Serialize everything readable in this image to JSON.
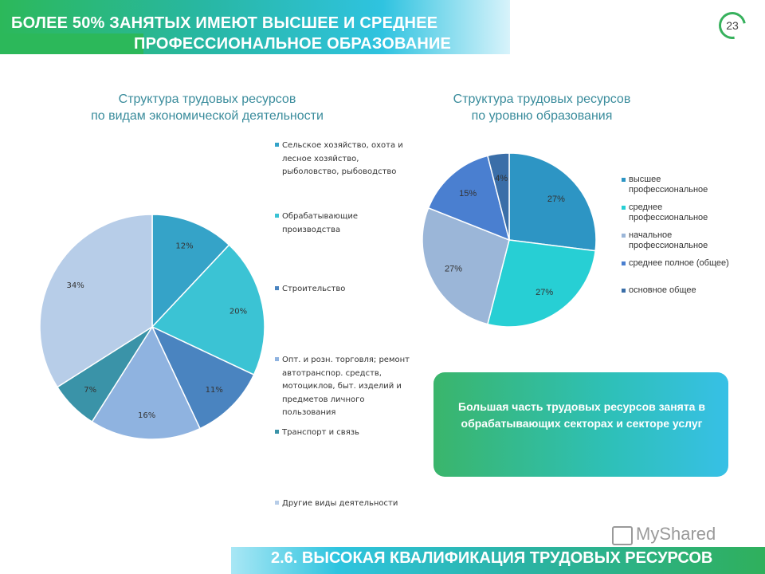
{
  "header": {
    "line1": "БОЛЕЕ 50% ЗАНЯТЫХ ИМЕЮТ ВЫСШЕЕ И СРЕДНЕЕ",
    "line2": "ПРОФЕССИОНАЛЬНОЕ ОБРАЗОВАНИЕ",
    "page_number": "23"
  },
  "chart_data": [
    {
      "type": "pie",
      "title": [
        "Структура трудовых ресурсов",
        "по видам экономической деятельности"
      ],
      "categories": [
        "Сельское хозяйство, охота и лесное хозяйство, рыболовство, рыбоводство",
        "Обрабатывающие производства",
        "Строительство",
        "Опт. и розн. торговля; ремонт автотранспор. средств, мотоциклов, быт. изделий и предметов личного пользования",
        "Транспорт и связь",
        "Другие виды деятельности"
      ],
      "values": [
        12,
        20,
        11,
        16,
        7,
        34
      ],
      "value_labels": [
        "12%",
        "20%",
        "11%",
        "16%",
        "7%",
        "34%"
      ],
      "colors": [
        "#35a3c8",
        "#3bc3d4",
        "#4a84c0",
        "#8fb3e0",
        "#3a93a8",
        "#b7cde8"
      ],
      "legend_position": "right"
    },
    {
      "type": "pie",
      "title": [
        "Структура трудовых ресурсов",
        "по уровню образования"
      ],
      "categories": [
        "высшее профессиональное",
        "среднее профессиональное",
        "начальное профессиональное",
        "среднее полное (общее)",
        "основное общее"
      ],
      "values": [
        27,
        27,
        27,
        15,
        4
      ],
      "value_labels": [
        "27%",
        "27%",
        "27%",
        "15%",
        "4%"
      ],
      "colors": [
        "#2d95c4",
        "#27cfd4",
        "#9bb6d8",
        "#4a7fd0",
        "#3a6ea8"
      ],
      "legend_position": "right"
    }
  ],
  "callout": {
    "text": "Большая часть трудовых ресурсов занята в обрабатывающих секторах и секторе услуг"
  },
  "footer": {
    "text": "2.6. ВЫСОКАЯ КВАЛИФИКАЦИЯ ТРУДОВЫХ РЕСУРСОВ"
  },
  "watermark": {
    "text": "MyShared"
  }
}
